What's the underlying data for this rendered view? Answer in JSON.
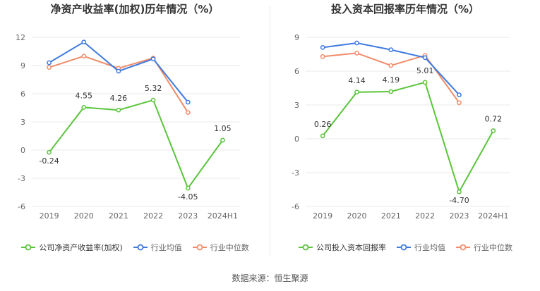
{
  "source": "数据来源：恒生聚源",
  "colors": {
    "company": "#5ac43b",
    "industry_avg": "#3e7ae0",
    "industry_median": "#f08c6a"
  },
  "chart_data": [
    {
      "type": "line",
      "title": "净资产收益率(加权)历年情况（%）",
      "categories": [
        "2019",
        "2020",
        "2021",
        "2022",
        "2023",
        "2024H1"
      ],
      "ylim": [
        -6,
        12
      ],
      "yticks": [
        -6,
        -3,
        0,
        3,
        6,
        9,
        12
      ],
      "series": [
        {
          "name": "公司净资产收益率(加权)",
          "values": [
            -0.24,
            4.55,
            4.26,
            5.32,
            -4.05,
            1.05
          ],
          "labels": [
            "-0.24",
            "4.55",
            "4.26",
            "5.32",
            "-4.05",
            "1.05"
          ]
        },
        {
          "name": "行业均值",
          "values": [
            9.3,
            11.5,
            8.4,
            9.7,
            5.1,
            null
          ]
        },
        {
          "name": "行业中位数",
          "values": [
            8.8,
            10.0,
            8.7,
            9.8,
            4.0,
            null
          ]
        }
      ]
    },
    {
      "type": "line",
      "title": "投入资本回报率历年情况（%）",
      "categories": [
        "2019",
        "2020",
        "2021",
        "2022",
        "2023",
        "2024H1"
      ],
      "ylim": [
        -6,
        9
      ],
      "yticks": [
        -6,
        -3,
        0,
        3,
        6,
        9
      ],
      "series": [
        {
          "name": "公司投入资本回报率",
          "values": [
            0.26,
            4.14,
            4.19,
            5.01,
            -4.7,
            0.72
          ],
          "labels": [
            "0.26",
            "4.14",
            "4.19",
            "5.01",
            "-4.70",
            "0.72"
          ]
        },
        {
          "name": "行业均值",
          "values": [
            8.1,
            8.5,
            7.9,
            7.2,
            3.9,
            null
          ]
        },
        {
          "name": "行业中位数",
          "values": [
            7.3,
            7.6,
            6.5,
            7.4,
            3.2,
            null
          ]
        }
      ]
    }
  ]
}
